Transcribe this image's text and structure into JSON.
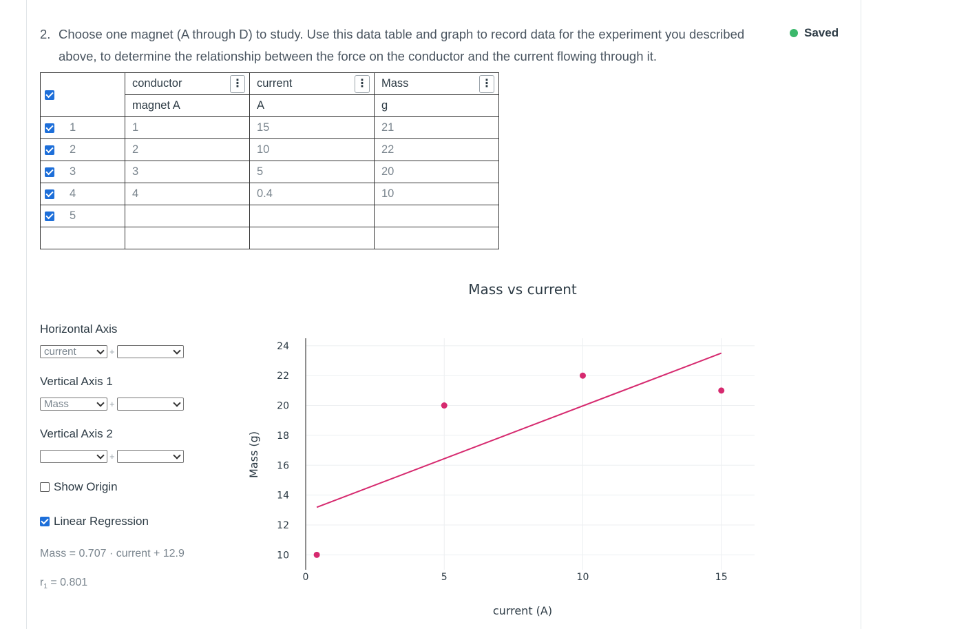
{
  "question": {
    "number": "2.",
    "text": "Choose one magnet (A through D) to study. Use this data table and graph to record data for the experiment you described above, to determine the relationship between the force on the conductor and the current flowing through it."
  },
  "status": {
    "label": "Saved",
    "color": "#3bb86b"
  },
  "table": {
    "columns": [
      {
        "name": "conductor",
        "unit": "magnet A"
      },
      {
        "name": "current",
        "unit": "A"
      },
      {
        "name": "Mass",
        "unit": "g"
      }
    ],
    "menu_icon": "⋮",
    "rows": [
      {
        "index": "1",
        "values": [
          "1",
          "15",
          "21"
        ]
      },
      {
        "index": "2",
        "values": [
          "2",
          "10",
          "22"
        ]
      },
      {
        "index": "3",
        "values": [
          "3",
          "5",
          "20"
        ]
      },
      {
        "index": "4",
        "values": [
          "4",
          "0.4",
          "10"
        ]
      },
      {
        "index": "5",
        "values": [
          "",
          "",
          ""
        ]
      },
      {
        "index": "",
        "values": [
          "",
          "",
          ""
        ]
      }
    ]
  },
  "controls": {
    "horizontal_axis": {
      "label": "Horizontal Axis",
      "selected": "current",
      "secondary": ""
    },
    "vertical_axis_1": {
      "label": "Vertical Axis 1",
      "selected": "Mass",
      "secondary": ""
    },
    "vertical_axis_2": {
      "label": "Vertical Axis 2",
      "selected": "",
      "secondary": ""
    },
    "plus": "+",
    "show_origin": {
      "label": "Show Origin",
      "checked": false
    },
    "linear_regression": {
      "label": "Linear Regression",
      "checked": true
    },
    "equation": "Mass = 0.707 · current + 12.9",
    "r_label": "r",
    "r_sub": "1",
    "r_value": " = 0.801"
  },
  "chart_data": {
    "type": "scatter",
    "title": "Mass vs current",
    "xlabel": "current  (A)",
    "ylabel": "Mass (g)",
    "xlim": [
      0,
      16.2
    ],
    "ylim": [
      9,
      24.5
    ],
    "xticks": [
      0,
      5,
      10,
      15
    ],
    "yticks": [
      10,
      12,
      14,
      16,
      18,
      20,
      22,
      24
    ],
    "points": [
      {
        "x": 15,
        "y": 21
      },
      {
        "x": 10,
        "y": 22
      },
      {
        "x": 5,
        "y": 20
      },
      {
        "x": 0.4,
        "y": 10
      }
    ],
    "regression": {
      "slope": 0.707,
      "intercept": 12.9,
      "x_start": 0.4,
      "x_end": 15
    },
    "point_color": "#d62a6f",
    "line_color": "#d62a6f",
    "grid": true
  }
}
